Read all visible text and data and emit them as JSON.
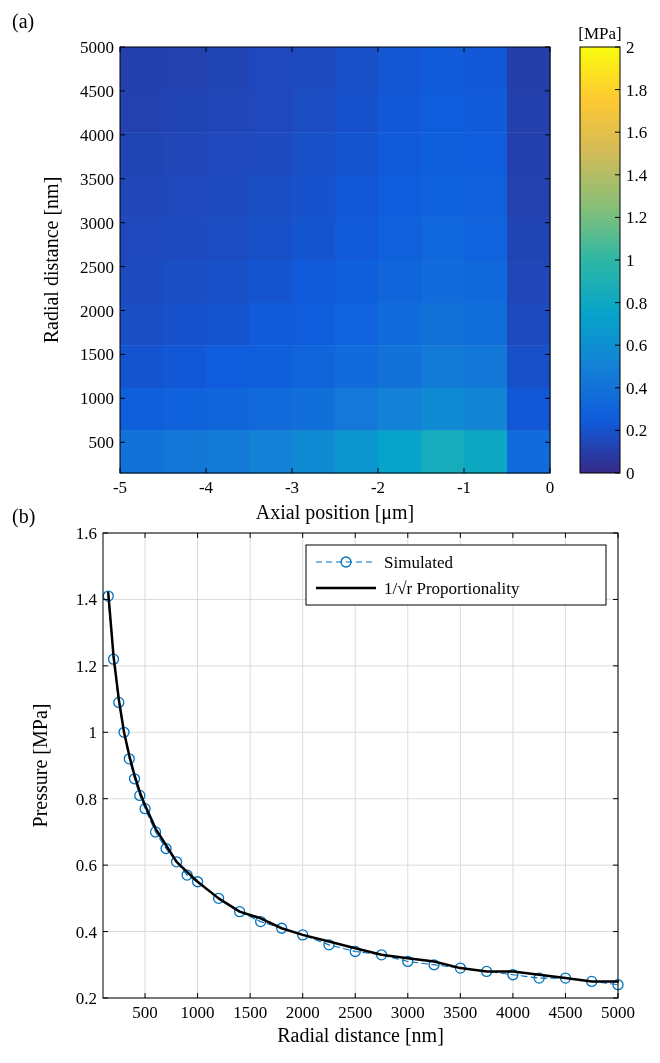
{
  "chart_data": [
    {
      "type": "heatmap",
      "title": "(a)",
      "xlabel": "Axial position [μm]",
      "ylabel": "Radial distance [nm]",
      "clabel": "[MPa]",
      "x": [
        -4.75,
        -4.25,
        -3.75,
        -3.25,
        -2.75,
        -2.25,
        -1.75,
        -1.25,
        -0.75,
        -0.25
      ],
      "xlim": [
        -5,
        0
      ],
      "xticks": [
        -5,
        -4,
        -3,
        -2,
        -1,
        0
      ],
      "ylim": [
        150,
        5000
      ],
      "yticks": [
        500,
        1000,
        1500,
        2000,
        2500,
        3000,
        3500,
        4000,
        4500,
        5000
      ],
      "clim": [
        0,
        2
      ],
      "cticks": [
        0,
        0.2,
        0.4,
        0.6,
        0.8,
        1,
        1.2,
        1.4,
        1.6,
        1.8,
        2
      ],
      "cells": [
        [
          0.11,
          0.12,
          0.13,
          0.15,
          0.16,
          0.19,
          0.22,
          0.24,
          0.23,
          0.1
        ],
        [
          0.12,
          0.13,
          0.14,
          0.15,
          0.17,
          0.2,
          0.23,
          0.26,
          0.24,
          0.11
        ],
        [
          0.13,
          0.14,
          0.15,
          0.16,
          0.19,
          0.21,
          0.24,
          0.27,
          0.26,
          0.11
        ],
        [
          0.14,
          0.15,
          0.16,
          0.18,
          0.2,
          0.23,
          0.26,
          0.29,
          0.28,
          0.12
        ],
        [
          0.15,
          0.16,
          0.17,
          0.19,
          0.21,
          0.24,
          0.28,
          0.32,
          0.3,
          0.13
        ],
        [
          0.16,
          0.18,
          0.19,
          0.21,
          0.24,
          0.27,
          0.31,
          0.35,
          0.33,
          0.14
        ],
        [
          0.18,
          0.2,
          0.21,
          0.24,
          0.26,
          0.3,
          0.35,
          0.39,
          0.37,
          0.16
        ],
        [
          0.21,
          0.23,
          0.25,
          0.27,
          0.31,
          0.35,
          0.4,
          0.45,
          0.43,
          0.19
        ],
        [
          0.27,
          0.29,
          0.31,
          0.34,
          0.38,
          0.44,
          0.5,
          0.57,
          0.53,
          0.23
        ],
        [
          0.4,
          0.43,
          0.46,
          0.51,
          0.57,
          0.65,
          0.75,
          0.85,
          0.8,
          0.35
        ]
      ]
    },
    {
      "type": "line",
      "title": "(b)",
      "xlabel": "Radial distance [nm]",
      "ylabel": "Pressure [MPa]",
      "x": [
        150,
        200,
        250,
        300,
        350,
        400,
        450,
        500,
        600,
        700,
        800,
        900,
        1000,
        1200,
        1400,
        1600,
        1800,
        2000,
        2250,
        2500,
        2750,
        3000,
        3250,
        3500,
        3750,
        4000,
        4250,
        4500,
        4750,
        5000
      ],
      "xlim": [
        100,
        5000
      ],
      "xticks": [
        500,
        1000,
        1500,
        2000,
        2500,
        3000,
        3500,
        4000,
        4500,
        5000
      ],
      "ylim": [
        0.2,
        1.6
      ],
      "yticks": [
        0.2,
        0.4,
        0.6,
        0.8,
        1,
        1.2,
        1.4,
        1.6
      ],
      "grid": true,
      "legend": "top right",
      "series": [
        {
          "name": "Simulated",
          "color": "#0072bd",
          "line_style": "dashed",
          "marker": "circle",
          "values": [
            1.41,
            1.22,
            1.09,
            1.0,
            0.92,
            0.86,
            0.81,
            0.77,
            0.7,
            0.65,
            0.61,
            0.57,
            0.55,
            0.5,
            0.46,
            0.43,
            0.41,
            0.39,
            0.36,
            0.34,
            0.33,
            0.31,
            0.3,
            0.29,
            0.28,
            0.27,
            0.26,
            0.26,
            0.25,
            0.24
          ]
        },
        {
          "name": "1/√r Proportionality",
          "color": "#000000",
          "line_style": "solid",
          "marker": "none",
          "values": [
            1.42,
            1.23,
            1.1,
            1.0,
            0.93,
            0.87,
            0.82,
            0.78,
            0.71,
            0.66,
            0.61,
            0.58,
            0.55,
            0.5,
            0.46,
            0.44,
            0.41,
            0.39,
            0.37,
            0.35,
            0.33,
            0.32,
            0.31,
            0.29,
            0.28,
            0.28,
            0.27,
            0.26,
            0.25,
            0.25
          ]
        }
      ]
    }
  ]
}
